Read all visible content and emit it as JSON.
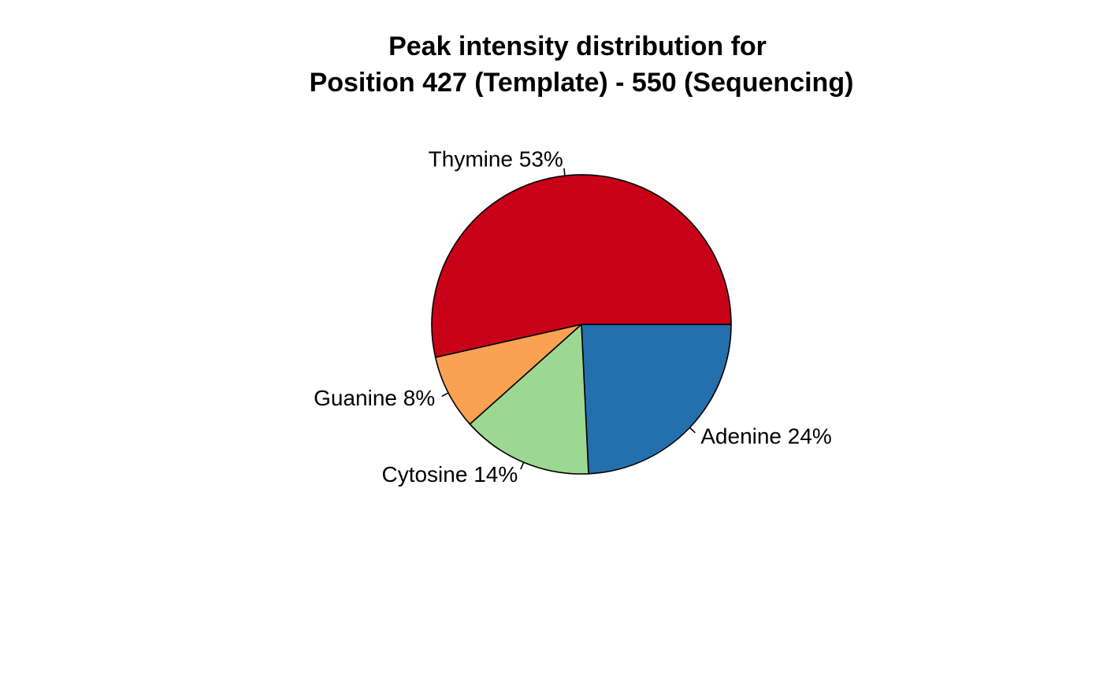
{
  "chart_data": {
    "type": "pie",
    "title_lines": [
      "Peak intensity distribution for",
      "Position 427 (Template) - 550 (Sequencing)"
    ],
    "slices": [
      {
        "name": "Adenine",
        "value": 24,
        "label": "Adenine 24%",
        "color": "#2470ad"
      },
      {
        "name": "Cytosine",
        "value": 14,
        "label": "Cytosine 14%",
        "color": "#9dd892"
      },
      {
        "name": "Guanine",
        "value": 8,
        "label": "Guanine 8%",
        "color": "#fba152"
      },
      {
        "name": "Thymine",
        "value": 53,
        "label": "Thymine 53%",
        "color": "#c80018"
      }
    ],
    "direction": "counterclockwise-from-3-oclock-as-drawn-clockwise",
    "legend": "none"
  }
}
